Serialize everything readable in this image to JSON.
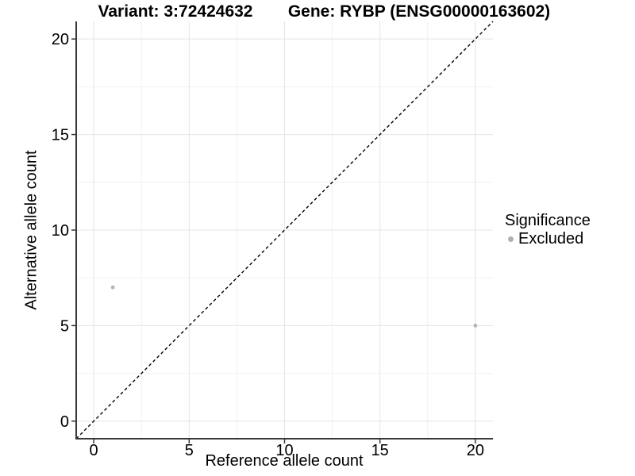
{
  "chart_data": {
    "type": "scatter",
    "title_left": "Variant: 3:72424632",
    "title_right": "Gene: RYBP (ENSG00000163602)",
    "xlabel": "Reference allele count",
    "ylabel": "Alternative allele count",
    "xlim": [
      -0.92,
      20.92
    ],
    "ylim": [
      -0.92,
      20.92
    ],
    "xticks": [
      0,
      5,
      10,
      15,
      20
    ],
    "yticks": [
      0,
      5,
      10,
      15,
      20
    ],
    "minor_xticks": [
      2.5,
      7.5,
      12.5,
      17.5
    ],
    "minor_yticks": [
      2.5,
      7.5,
      12.5,
      17.5
    ],
    "grid": true,
    "identity_line": {
      "slope": 1,
      "intercept": 0,
      "style": "dashed",
      "color": "#000000"
    },
    "series": [
      {
        "name": "Excluded",
        "color": "#b5b5b5",
        "points": [
          {
            "x": 1,
            "y": 7
          },
          {
            "x": 20,
            "y": 5
          }
        ]
      }
    ],
    "legend": {
      "title": "Significance",
      "position": "right",
      "entries": [
        {
          "label": "Excluded",
          "color": "#b0b0b0"
        }
      ]
    },
    "colors": {
      "background": "#ffffff",
      "text": "#000000",
      "axis": "#383838",
      "grid_major": "#e4e4e4",
      "grid_minor": "#f1f1f1"
    }
  }
}
